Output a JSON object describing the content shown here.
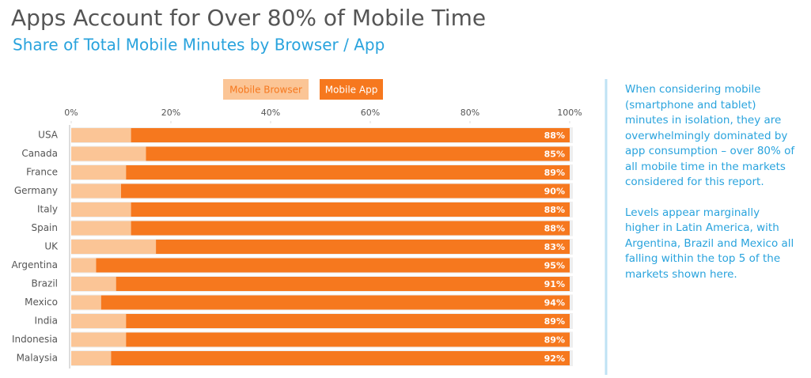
{
  "chart_data": {
    "type": "stacked_bar_horizontal",
    "title": "Apps Account for Over 80% of Mobile Time",
    "subtitle": "Share of Total Mobile Minutes by Browser / App",
    "categories": [
      "USA",
      "Canada",
      "France",
      "Germany",
      "Italy",
      "Spain",
      "UK",
      "Argentina",
      "Brazil",
      "Mexico",
      "India",
      "Indonesia",
      "Malaysia"
    ],
    "series": [
      {
        "name": "Mobile Browser",
        "color": "#fbc596",
        "values": [
          12,
          15,
          11,
          10,
          12,
          12,
          17,
          5,
          9,
          6,
          11,
          11,
          8
        ]
      },
      {
        "name": "Mobile App",
        "color": "#f6781e",
        "values": [
          88,
          85,
          89,
          90,
          88,
          88,
          83,
          95,
          91,
          94,
          89,
          89,
          92
        ],
        "value_labels": [
          "88%",
          "85%",
          "89%",
          "90%",
          "88%",
          "88%",
          "83%",
          "95%",
          "91%",
          "94%",
          "89%",
          "89%",
          "92%"
        ]
      }
    ],
    "xlim": [
      0,
      100
    ],
    "xticks": [
      {
        "value": 0,
        "label": "0%"
      },
      {
        "value": 20,
        "label": "20%"
      },
      {
        "value": 40,
        "label": "40%"
      },
      {
        "value": 60,
        "label": "60%"
      },
      {
        "value": 80,
        "label": "80%"
      },
      {
        "value": 100,
        "label": "100%"
      }
    ],
    "annotations": [
      "When considering mobile (smartphone and tablet) minutes in isolation, they are overwhelmingly dominated by app consumption – over 80% of all mobile time in the markets considered for this report.",
      "Levels appear marginally higher in Latin America, with Argentina, Brazil and Mexico all falling within the top 5 of the markets shown here."
    ]
  }
}
